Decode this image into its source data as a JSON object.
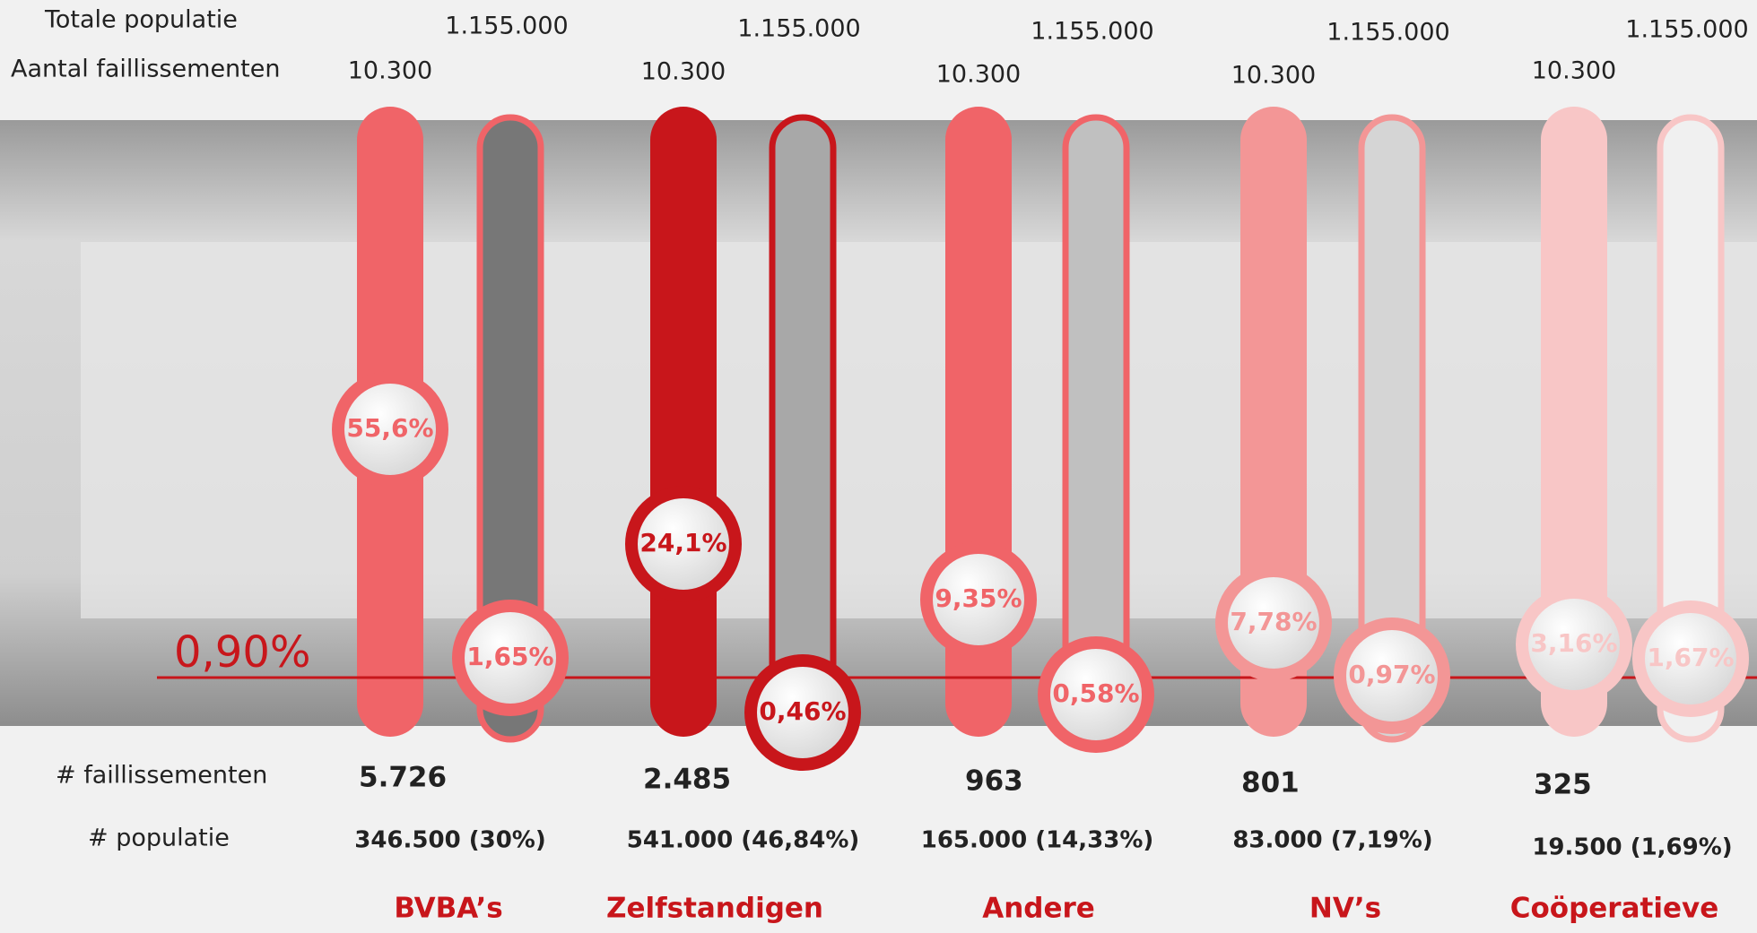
{
  "labels": {
    "total_population": "Totale populatie",
    "bankruptcies": "Aantal faillissementen",
    "count_bankruptcies": "# faillissementen",
    "count_population": "# populatie",
    "average": "0,90%"
  },
  "groups": [
    {
      "name": "BVBA’s",
      "top_population": "1.155.000",
      "top_bankruptcies": "10.300",
      "share_bankruptcies": "55,6%",
      "rate": "1,65%",
      "bankruptcies": "5.726",
      "population": "346.500 (30%)"
    },
    {
      "name": "Zelfstandigen",
      "top_population": "1.155.000",
      "top_bankruptcies": "10.300",
      "share_bankruptcies": "24,1%",
      "rate": "0,46%",
      "bankruptcies": "2.485",
      "population": "541.000 (46,84%)"
    },
    {
      "name": "Andere",
      "top_population": "1.155.000",
      "top_bankruptcies": "10.300",
      "share_bankruptcies": "9,35%",
      "rate": "0,58%",
      "bankruptcies": "963",
      "population": "165.000 (14,33%)"
    },
    {
      "name": "NV’s",
      "top_population": "1.155.000",
      "top_bankruptcies": "10.300",
      "share_bankruptcies": "7,78%",
      "rate": "0,97%",
      "bankruptcies": "801",
      "population": "83.000 (7,19%)"
    },
    {
      "name": "Coöperatieve",
      "top_population": "1.155.000",
      "top_bankruptcies": "10.300",
      "share_bankruptcies": "3,16%",
      "rate": "1,67%",
      "bankruptcies": "325",
      "population": "19.500 (1,69%)"
    }
  ]
}
